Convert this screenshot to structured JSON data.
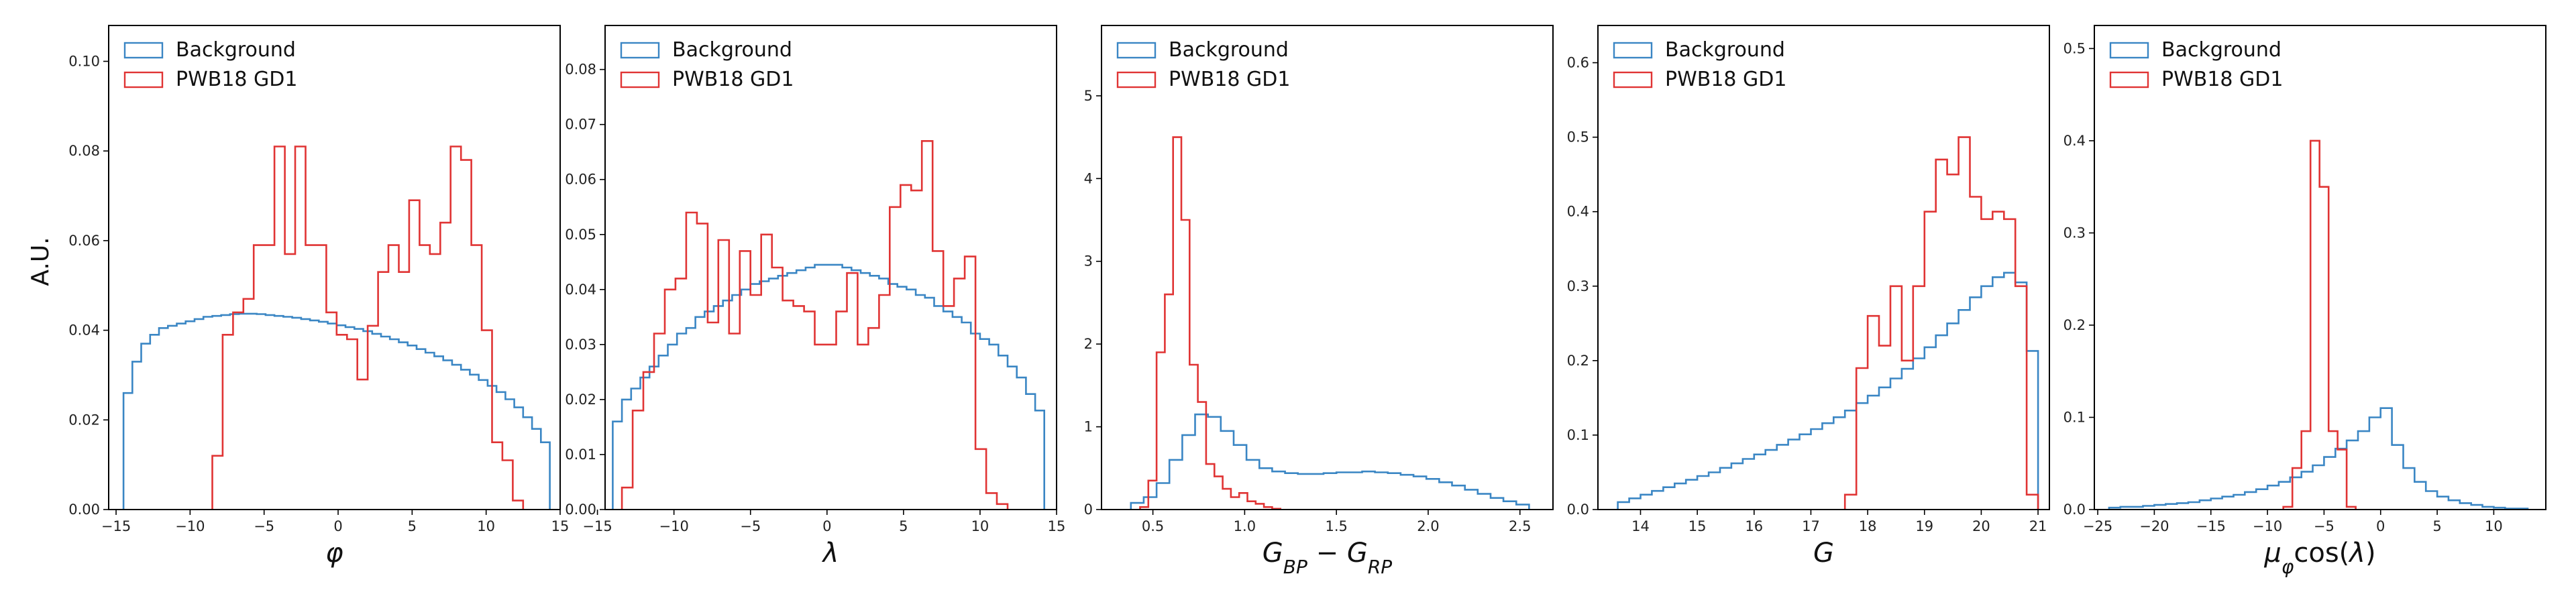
{
  "figure": {
    "ylabel": "A.U.",
    "colors": {
      "background": "#3a86c4",
      "gd1": "#e03434"
    }
  },
  "chart_data": [
    {
      "type": "histogram",
      "xlabel": "φ",
      "xlim": [
        -15.5,
        15
      ],
      "ylim": [
        0,
        0.108
      ],
      "xticks": [
        -15,
        -10,
        -5,
        0,
        5,
        10,
        15
      ],
      "xtick_labels": [
        "−15",
        "−10",
        "−5",
        "0",
        "5",
        "10",
        "15"
      ],
      "yticks": [
        0,
        0.02,
        0.04,
        0.06,
        0.08,
        0.1
      ],
      "ytick_labels": [
        "0.00",
        "0.02",
        "0.04",
        "0.06",
        "0.08",
        "0.10"
      ],
      "legend": {
        "position": "top-left",
        "entries": [
          "Background",
          "PWB18 GD1"
        ]
      },
      "series": [
        {
          "name": "Background",
          "color": "#3a86c4",
          "edges": [
            -14.5,
            -13.9,
            -13.3,
            -12.7,
            -12.1,
            -11.5,
            -10.9,
            -10.3,
            -9.7,
            -9.1,
            -8.5,
            -7.9,
            -7.3,
            -6.7,
            -6.1,
            -5.5,
            -4.9,
            -4.3,
            -3.7,
            -3.1,
            -2.5,
            -1.9,
            -1.3,
            -0.7,
            -0.1,
            0.5,
            1.1,
            1.7,
            2.3,
            2.9,
            3.5,
            4.1,
            4.7,
            5.3,
            5.9,
            6.5,
            7.1,
            7.7,
            8.3,
            8.9,
            9.5,
            10.1,
            10.7,
            11.3,
            11.9,
            12.5,
            13.1,
            13.7,
            14.3
          ],
          "values": [
            0.026,
            0.033,
            0.037,
            0.039,
            0.0405,
            0.041,
            0.0415,
            0.042,
            0.0425,
            0.043,
            0.0432,
            0.0434,
            0.0436,
            0.0437,
            0.0437,
            0.0436,
            0.0434,
            0.0432,
            0.043,
            0.0428,
            0.0425,
            0.0422,
            0.0419,
            0.0415,
            0.0411,
            0.0407,
            0.0403,
            0.0398,
            0.0392,
            0.0386,
            0.038,
            0.0373,
            0.0366,
            0.0358,
            0.035,
            0.0342,
            0.0333,
            0.0323,
            0.0312,
            0.0301,
            0.0289,
            0.0276,
            0.0262,
            0.0246,
            0.0228,
            0.0206,
            0.018,
            0.015
          ]
        },
        {
          "name": "PWB18 GD1",
          "color": "#e03434",
          "edges": [
            -8.5,
            -7.8,
            -7.1,
            -6.4,
            -5.7,
            -5.0,
            -4.3,
            -3.6,
            -2.9,
            -2.2,
            -1.5,
            -0.8,
            -0.1,
            0.6,
            1.3,
            2.0,
            2.7,
            3.4,
            4.1,
            4.8,
            5.5,
            6.2,
            6.9,
            7.6,
            8.3,
            9.0,
            9.7,
            10.4,
            11.1,
            11.8,
            12.5
          ],
          "values": [
            0.012,
            0.039,
            0.044,
            0.047,
            0.059,
            0.059,
            0.081,
            0.057,
            0.081,
            0.059,
            0.059,
            0.044,
            0.039,
            0.038,
            0.029,
            0.041,
            0.053,
            0.059,
            0.053,
            0.069,
            0.059,
            0.057,
            0.064,
            0.081,
            0.078,
            0.059,
            0.04,
            0.015,
            0.011,
            0.002
          ]
        }
      ]
    },
    {
      "type": "histogram",
      "xlabel": "λ",
      "xlim": [
        -14.5,
        15
      ],
      "ylim": [
        0,
        0.088
      ],
      "xticks": [
        -15,
        -10,
        -5,
        0,
        5,
        10,
        15
      ],
      "xtick_labels": [
        "−15",
        "−10",
        "−5",
        "0",
        "5",
        "10",
        "15"
      ],
      "yticks": [
        0,
        0.01,
        0.02,
        0.03,
        0.04,
        0.05,
        0.06,
        0.07,
        0.08
      ],
      "ytick_labels": [
        "0.00",
        "0.01",
        "0.02",
        "0.03",
        "0.04",
        "0.05",
        "0.06",
        "0.07",
        "0.08"
      ],
      "legend": {
        "position": "top-left",
        "entries": [
          "Background",
          "PWB18 GD1"
        ]
      },
      "series": [
        {
          "name": "Background",
          "color": "#3a86c4",
          "edges": [
            -14,
            -13.4,
            -12.8,
            -12.2,
            -11.6,
            -11,
            -10.4,
            -9.8,
            -9.2,
            -8.6,
            -8,
            -7.4,
            -6.8,
            -6.2,
            -5.6,
            -5,
            -4.4,
            -3.8,
            -3.2,
            -2.6,
            -2,
            -1.4,
            -0.8,
            -0.2,
            0.4,
            1,
            1.6,
            2.2,
            2.8,
            3.4,
            4,
            4.6,
            5.2,
            5.8,
            6.4,
            7,
            7.6,
            8.2,
            8.8,
            9.4,
            10,
            10.6,
            11.2,
            11.8,
            12.4,
            13,
            13.6,
            14.2
          ],
          "values": [
            0.016,
            0.02,
            0.022,
            0.024,
            0.026,
            0.028,
            0.03,
            0.032,
            0.033,
            0.035,
            0.036,
            0.037,
            0.038,
            0.039,
            0.04,
            0.041,
            0.0415,
            0.042,
            0.0425,
            0.043,
            0.0435,
            0.044,
            0.0445,
            0.0445,
            0.0445,
            0.044,
            0.0435,
            0.043,
            0.0425,
            0.042,
            0.041,
            0.0405,
            0.04,
            0.039,
            0.0385,
            0.037,
            0.036,
            0.035,
            0.034,
            0.032,
            0.031,
            0.03,
            0.028,
            0.026,
            0.024,
            0.021,
            0.018
          ]
        },
        {
          "name": "PWB18 GD1",
          "color": "#e03434",
          "edges": [
            -13.4,
            -12.7,
            -12.0,
            -11.3,
            -10.6,
            -9.9,
            -9.2,
            -8.5,
            -7.8,
            -7.1,
            -6.4,
            -5.7,
            -5.0,
            -4.3,
            -3.6,
            -2.9,
            -2.2,
            -1.5,
            -0.8,
            -0.1,
            0.6,
            1.3,
            2.0,
            2.7,
            3.4,
            4.1,
            4.8,
            5.5,
            6.2,
            6.9,
            7.6,
            8.3,
            9.0,
            9.7,
            10.4,
            11.1,
            11.8
          ],
          "values": [
            0.004,
            0.018,
            0.025,
            0.032,
            0.04,
            0.042,
            0.054,
            0.052,
            0.034,
            0.049,
            0.032,
            0.047,
            0.039,
            0.05,
            0.044,
            0.038,
            0.037,
            0.036,
            0.03,
            0.03,
            0.036,
            0.043,
            0.03,
            0.033,
            0.039,
            0.055,
            0.059,
            0.058,
            0.067,
            0.047,
            0.037,
            0.042,
            0.046,
            0.011,
            0.003,
            0.001
          ]
        }
      ]
    },
    {
      "type": "histogram",
      "xlabel": "G_BP − G_RP",
      "xlim": [
        0.22,
        2.68
      ],
      "ylim": [
        0,
        5.85
      ],
      "xticks": [
        0.5,
        1.0,
        1.5,
        2.0,
        2.5
      ],
      "xtick_labels": [
        "0.5",
        "1.0",
        "1.5",
        "2.0",
        "2.5"
      ],
      "yticks": [
        0,
        1,
        2,
        3,
        4,
        5
      ],
      "ytick_labels": [
        "0",
        "1",
        "2",
        "3",
        "4",
        "5"
      ],
      "legend": {
        "position": "top-left",
        "entries": [
          "Background",
          "PWB18 GD1"
        ]
      },
      "series": [
        {
          "name": "Background",
          "color": "#3a86c4",
          "edges": [
            0.38,
            0.45,
            0.52,
            0.59,
            0.66,
            0.73,
            0.8,
            0.87,
            0.94,
            1.01,
            1.08,
            1.15,
            1.22,
            1.29,
            1.36,
            1.43,
            1.5,
            1.57,
            1.64,
            1.71,
            1.78,
            1.85,
            1.92,
            1.99,
            2.06,
            2.13,
            2.2,
            2.27,
            2.34,
            2.41,
            2.48,
            2.55
          ],
          "values": [
            0.08,
            0.15,
            0.32,
            0.6,
            0.9,
            1.15,
            1.12,
            0.95,
            0.78,
            0.6,
            0.5,
            0.46,
            0.44,
            0.43,
            0.43,
            0.44,
            0.45,
            0.45,
            0.46,
            0.45,
            0.44,
            0.42,
            0.4,
            0.37,
            0.33,
            0.29,
            0.24,
            0.19,
            0.14,
            0.1,
            0.06
          ]
        },
        {
          "name": "PWB18 GD1",
          "color": "#e03434",
          "edges": [
            0.43,
            0.475,
            0.52,
            0.565,
            0.61,
            0.655,
            0.7,
            0.745,
            0.79,
            0.835,
            0.88,
            0.925,
            0.97,
            1.015,
            1.06,
            1.105,
            1.15,
            1.195
          ],
          "values": [
            0.03,
            0.35,
            1.9,
            2.6,
            4.5,
            3.5,
            1.75,
            1.3,
            0.55,
            0.4,
            0.25,
            0.15,
            0.2,
            0.1,
            0.07,
            0.03,
            0.01
          ]
        }
      ]
    },
    {
      "type": "histogram",
      "xlabel": "G",
      "xlim": [
        13.25,
        21.2
      ],
      "ylim": [
        0,
        0.65
      ],
      "xticks": [
        14,
        15,
        16,
        17,
        18,
        19,
        20,
        21
      ],
      "xtick_labels": [
        "14",
        "15",
        "16",
        "17",
        "18",
        "19",
        "20",
        "21"
      ],
      "yticks": [
        0,
        0.1,
        0.2,
        0.3,
        0.4,
        0.5,
        0.6
      ],
      "ytick_labels": [
        "0.0",
        "0.1",
        "0.2",
        "0.3",
        "0.4",
        "0.5",
        "0.6"
      ],
      "legend": {
        "position": "top-left",
        "entries": [
          "Background",
          "PWB18 GD1"
        ]
      },
      "series": [
        {
          "name": "Background",
          "color": "#3a86c4",
          "edges": [
            13.6,
            13.8,
            14.0,
            14.2,
            14.4,
            14.6,
            14.8,
            15.0,
            15.2,
            15.4,
            15.6,
            15.8,
            16.0,
            16.2,
            16.4,
            16.6,
            16.8,
            17.0,
            17.2,
            17.4,
            17.6,
            17.8,
            18.0,
            18.2,
            18.4,
            18.6,
            18.8,
            19.0,
            19.2,
            19.4,
            19.6,
            19.8,
            20.0,
            20.2,
            20.4,
            20.6,
            20.8,
            21.0
          ],
          "values": [
            0.01,
            0.015,
            0.02,
            0.025,
            0.03,
            0.035,
            0.04,
            0.045,
            0.05,
            0.056,
            0.062,
            0.068,
            0.074,
            0.08,
            0.087,
            0.094,
            0.101,
            0.108,
            0.116,
            0.124,
            0.133,
            0.143,
            0.153,
            0.164,
            0.176,
            0.189,
            0.203,
            0.218,
            0.234,
            0.25,
            0.268,
            0.285,
            0.3,
            0.312,
            0.318,
            0.305,
            0.213
          ]
        },
        {
          "name": "PWB18 GD1",
          "color": "#e03434",
          "edges": [
            17.6,
            17.8,
            18.0,
            18.2,
            18.4,
            18.6,
            18.8,
            19.0,
            19.2,
            19.4,
            19.6,
            19.8,
            20.0,
            20.2,
            20.4,
            20.6,
            20.8,
            21.0
          ],
          "values": [
            0.02,
            0.19,
            0.26,
            0.22,
            0.3,
            0.2,
            0.3,
            0.4,
            0.47,
            0.45,
            0.5,
            0.42,
            0.39,
            0.4,
            0.39,
            0.3,
            0.02
          ]
        }
      ]
    },
    {
      "type": "histogram",
      "xlabel": "μ_φ cos(λ)",
      "xlim": [
        -25.3,
        14.6
      ],
      "ylim": [
        0,
        0.525
      ],
      "xticks": [
        -25,
        -20,
        -15,
        -10,
        -5,
        0,
        5,
        10
      ],
      "xtick_labels": [
        "−25",
        "−20",
        "−15",
        "−10",
        "−5",
        "0",
        "5",
        "10"
      ],
      "yticks": [
        0,
        0.1,
        0.2,
        0.3,
        0.4,
        0.5
      ],
      "ytick_labels": [
        "0.0",
        "0.1",
        "0.2",
        "0.3",
        "0.4",
        "0.5"
      ],
      "legend": {
        "position": "top-left",
        "entries": [
          "Background",
          "PWB18 GD1"
        ]
      },
      "series": [
        {
          "name": "Background",
          "color": "#3a86c4",
          "edges": [
            -24,
            -23,
            -22,
            -21,
            -20,
            -19,
            -18,
            -17,
            -16,
            -15,
            -14,
            -13,
            -12,
            -11,
            -10,
            -9,
            -8,
            -7,
            -6,
            -5,
            -4,
            -3,
            -2,
            -1,
            0,
            1,
            2,
            3,
            4,
            5,
            6,
            7,
            8,
            9,
            10,
            11,
            12,
            13
          ],
          "values": [
            0.002,
            0.003,
            0.003,
            0.004,
            0.005,
            0.006,
            0.007,
            0.008,
            0.01,
            0.012,
            0.014,
            0.016,
            0.019,
            0.022,
            0.026,
            0.03,
            0.035,
            0.041,
            0.048,
            0.057,
            0.066,
            0.075,
            0.085,
            0.1,
            0.11,
            0.07,
            0.045,
            0.03,
            0.02,
            0.014,
            0.01,
            0.007,
            0.005,
            0.003,
            0.002,
            0.001,
            0.001
          ]
        },
        {
          "name": "PWB18 GD1",
          "color": "#e03434",
          "edges": [
            -8.6,
            -7.8,
            -7.0,
            -6.2,
            -5.4,
            -4.6,
            -3.8,
            -3.0,
            -2.2
          ],
          "values": [
            0.003,
            0.045,
            0.085,
            0.4,
            0.35,
            0.085,
            0.065,
            0.003
          ]
        }
      ]
    }
  ]
}
